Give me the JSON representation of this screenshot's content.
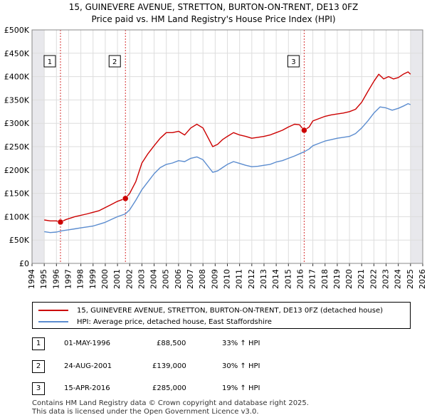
{
  "header": {
    "title_line1": "15, GUINEVERE AVENUE, STRETTON, BURTON-ON-TRENT, DE13 0FZ",
    "title_line2": "Price paid vs. HM Land Registry's House Price Index (HPI)"
  },
  "chart_data": {
    "type": "line",
    "x_range": [
      1994,
      2026
    ],
    "y_range": [
      0,
      500000
    ],
    "x_ticks": [
      1994,
      1995,
      1996,
      1997,
      1998,
      1999,
      2000,
      2001,
      2002,
      2003,
      2004,
      2005,
      2006,
      2007,
      2008,
      2009,
      2010,
      2011,
      2012,
      2013,
      2014,
      2015,
      2016,
      2017,
      2018,
      2019,
      2020,
      2021,
      2022,
      2023,
      2024,
      2025,
      2026
    ],
    "y_ticks": [
      {
        "value": 0,
        "label": "£0"
      },
      {
        "value": 50000,
        "label": "£50K"
      },
      {
        "value": 100000,
        "label": "£100K"
      },
      {
        "value": 150000,
        "label": "£150K"
      },
      {
        "value": 200000,
        "label": "£200K"
      },
      {
        "value": 250000,
        "label": "£250K"
      },
      {
        "value": 300000,
        "label": "£300K"
      },
      {
        "value": 350000,
        "label": "£350K"
      },
      {
        "value": 400000,
        "label": "£400K"
      },
      {
        "value": 450000,
        "label": "£450K"
      },
      {
        "value": 500000,
        "label": "£500K"
      }
    ],
    "data_start": 1995.0,
    "data_end": 2025.0,
    "series": [
      {
        "name": "15, GUINEVERE AVENUE, STRETTON, BURTON-ON-TRENT, DE13 0FZ (detached house)",
        "color": "#cc0000",
        "points": [
          [
            1995.0,
            93000
          ],
          [
            1995.5,
            91000
          ],
          [
            1996.0,
            91000
          ],
          [
            1996.33,
            88500
          ],
          [
            1996.8,
            94000
          ],
          [
            1997.5,
            100000
          ],
          [
            1998.5,
            106000
          ],
          [
            1999.5,
            113000
          ],
          [
            2000.5,
            126000
          ],
          [
            2001.0,
            133000
          ],
          [
            2001.65,
            139000
          ],
          [
            2002.0,
            150000
          ],
          [
            2002.5,
            175000
          ],
          [
            2003.0,
            215000
          ],
          [
            2003.5,
            235000
          ],
          [
            2004.0,
            252000
          ],
          [
            2004.5,
            268000
          ],
          [
            2005.0,
            280000
          ],
          [
            2005.5,
            280000
          ],
          [
            2006.0,
            283000
          ],
          [
            2006.5,
            275000
          ],
          [
            2007.0,
            290000
          ],
          [
            2007.5,
            298000
          ],
          [
            2008.0,
            290000
          ],
          [
            2008.5,
            265000
          ],
          [
            2008.8,
            250000
          ],
          [
            2009.2,
            255000
          ],
          [
            2009.6,
            265000
          ],
          [
            2010.0,
            272000
          ],
          [
            2010.5,
            280000
          ],
          [
            2011.0,
            275000
          ],
          [
            2011.5,
            272000
          ],
          [
            2012.0,
            268000
          ],
          [
            2012.5,
            270000
          ],
          [
            2013.0,
            272000
          ],
          [
            2013.5,
            275000
          ],
          [
            2014.0,
            280000
          ],
          [
            2014.5,
            285000
          ],
          [
            2015.0,
            292000
          ],
          [
            2015.5,
            298000
          ],
          [
            2015.9,
            297000
          ],
          [
            2016.29,
            285000
          ],
          [
            2016.7,
            292000
          ],
          [
            2017.0,
            305000
          ],
          [
            2017.5,
            310000
          ],
          [
            2018.0,
            315000
          ],
          [
            2018.5,
            318000
          ],
          [
            2019.0,
            320000
          ],
          [
            2019.5,
            322000
          ],
          [
            2020.0,
            325000
          ],
          [
            2020.5,
            330000
          ],
          [
            2021.0,
            345000
          ],
          [
            2021.5,
            368000
          ],
          [
            2022.0,
            390000
          ],
          [
            2022.4,
            405000
          ],
          [
            2022.8,
            395000
          ],
          [
            2023.2,
            400000
          ],
          [
            2023.6,
            395000
          ],
          [
            2024.0,
            398000
          ],
          [
            2024.4,
            405000
          ],
          [
            2024.8,
            410000
          ],
          [
            2025.0,
            405000
          ]
        ]
      },
      {
        "name": "HPI: Average price, detached house, East Staffordshire",
        "color": "#5b8ccf",
        "points": [
          [
            1995.0,
            68000
          ],
          [
            1995.5,
            66000
          ],
          [
            1996.0,
            67000
          ],
          [
            1996.5,
            70000
          ],
          [
            1997.0,
            72000
          ],
          [
            1997.5,
            74000
          ],
          [
            1998.0,
            76000
          ],
          [
            1998.5,
            78000
          ],
          [
            1999.0,
            80000
          ],
          [
            1999.5,
            84000
          ],
          [
            2000.0,
            88000
          ],
          [
            2000.5,
            94000
          ],
          [
            2001.0,
            100000
          ],
          [
            2001.65,
            106000
          ],
          [
            2002.0,
            115000
          ],
          [
            2002.5,
            135000
          ],
          [
            2003.0,
            158000
          ],
          [
            2003.5,
            175000
          ],
          [
            2004.0,
            192000
          ],
          [
            2004.5,
            205000
          ],
          [
            2005.0,
            212000
          ],
          [
            2005.5,
            215000
          ],
          [
            2006.0,
            220000
          ],
          [
            2006.5,
            218000
          ],
          [
            2007.0,
            225000
          ],
          [
            2007.5,
            228000
          ],
          [
            2008.0,
            222000
          ],
          [
            2008.5,
            205000
          ],
          [
            2008.8,
            195000
          ],
          [
            2009.2,
            198000
          ],
          [
            2009.6,
            205000
          ],
          [
            2010.0,
            212000
          ],
          [
            2010.5,
            218000
          ],
          [
            2011.0,
            214000
          ],
          [
            2011.5,
            210000
          ],
          [
            2012.0,
            207000
          ],
          [
            2012.5,
            208000
          ],
          [
            2013.0,
            210000
          ],
          [
            2013.5,
            212000
          ],
          [
            2014.0,
            217000
          ],
          [
            2014.5,
            220000
          ],
          [
            2015.0,
            225000
          ],
          [
            2015.5,
            230000
          ],
          [
            2016.29,
            239000
          ],
          [
            2016.7,
            245000
          ],
          [
            2017.0,
            252000
          ],
          [
            2017.5,
            257000
          ],
          [
            2018.0,
            262000
          ],
          [
            2018.5,
            265000
          ],
          [
            2019.0,
            268000
          ],
          [
            2019.5,
            270000
          ],
          [
            2020.0,
            272000
          ],
          [
            2020.5,
            278000
          ],
          [
            2021.0,
            290000
          ],
          [
            2021.5,
            305000
          ],
          [
            2022.0,
            322000
          ],
          [
            2022.5,
            335000
          ],
          [
            2023.0,
            333000
          ],
          [
            2023.5,
            328000
          ],
          [
            2024.0,
            332000
          ],
          [
            2024.5,
            338000
          ],
          [
            2024.8,
            342000
          ],
          [
            2025.0,
            340000
          ]
        ]
      }
    ],
    "sales": [
      {
        "label": "1",
        "x": 1996.33,
        "price": 88500
      },
      {
        "label": "2",
        "x": 2001.65,
        "price": 139000
      },
      {
        "label": "3",
        "x": 2016.29,
        "price": 285000
      }
    ],
    "sale_marker_color": "#cc0000",
    "vline_color": "#cc0000",
    "grid": true
  },
  "legend": {
    "line1": "15, GUINEVERE AVENUE, STRETTON, BURTON-ON-TRENT, DE13 0FZ (detached house)",
    "line2": "HPI: Average price, detached house, East Staffordshire",
    "color1": "#cc0000",
    "color2": "#5b8ccf"
  },
  "sales_table": [
    {
      "num": "1",
      "date": "01-MAY-1996",
      "price": "£88,500",
      "hpi": "33% ↑ HPI"
    },
    {
      "num": "2",
      "date": "24-AUG-2001",
      "price": "£139,000",
      "hpi": "30% ↑ HPI"
    },
    {
      "num": "3",
      "date": "15-APR-2016",
      "price": "£285,000",
      "hpi": "19% ↑ HPI"
    }
  ],
  "footer": {
    "line1": "Contains HM Land Registry data © Crown copyright and database right 2025.",
    "line2": "This data is licensed under the Open Government Licence v3.0."
  }
}
